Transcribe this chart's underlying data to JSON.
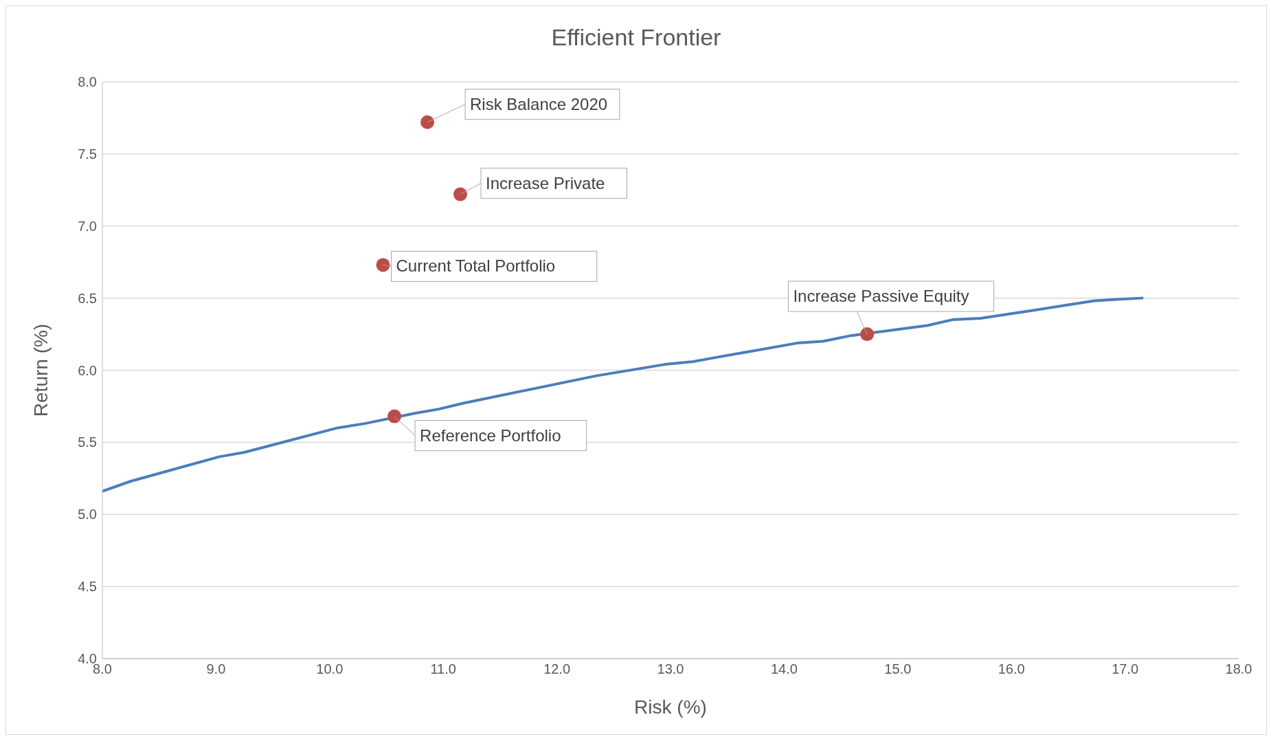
{
  "chart_data": {
    "type": "line",
    "title": "Efficient Frontier",
    "xlabel": "Risk (%)",
    "ylabel": "Return  (%)",
    "xlim": [
      8.0,
      18.0
    ],
    "xticks": [
      {
        "value": 8,
        "label": "8.0"
      },
      {
        "value": 9,
        "label": "9.0"
      },
      {
        "value": 10,
        "label": "10.0"
      },
      {
        "value": 11,
        "label": "11.0"
      },
      {
        "value": 12,
        "label": "12.0"
      },
      {
        "value": 13,
        "label": "13.0"
      },
      {
        "value": 14,
        "label": "14.0"
      },
      {
        "value": 15,
        "label": "15.0"
      },
      {
        "value": 16,
        "label": "16.0"
      },
      {
        "value": 17,
        "label": "17.0"
      },
      {
        "value": 18,
        "label": "18.0"
      }
    ],
    "ylim": [
      4.0,
      8.0
    ],
    "yticks": [
      {
        "value": 4,
        "label": "4.0"
      },
      {
        "value": 4.5,
        "label": "4.5"
      },
      {
        "value": 5,
        "label": "5.0"
      },
      {
        "value": 5.5,
        "label": "5.5"
      },
      {
        "value": 6,
        "label": "6.0"
      },
      {
        "value": 6.5,
        "label": "6.5"
      },
      {
        "value": 7,
        "label": "7.0"
      },
      {
        "value": 7.5,
        "label": "7.5"
      },
      {
        "value": 8,
        "label": "8.0"
      }
    ],
    "grid": "y",
    "series": [
      {
        "color": "#4a7ebb",
        "marker": "none",
        "line_style": "solid",
        "x": [
          8.0,
          8.25,
          9.03,
          9.25,
          10.07,
          10.31,
          10.74,
          10.96,
          11.17,
          12.34,
          12.95,
          13.2,
          13.41,
          13.63,
          14.13,
          14.34,
          14.59,
          15.26,
          15.48,
          15.73,
          16.23,
          16.72,
          16.9,
          17.15
        ],
        "values": [
          5.16,
          5.23,
          5.4,
          5.43,
          5.6,
          5.63,
          5.7,
          5.73,
          5.77,
          5.96,
          6.04,
          6.06,
          6.09,
          6.12,
          6.19,
          6.2,
          6.24,
          6.31,
          6.35,
          6.36,
          6.42,
          6.48,
          6.49,
          6.5
        ]
      },
      {
        "type": "scatter",
        "color": "#be4b48",
        "marker": "circle",
        "x": [
          10.86,
          11.15,
          10.47,
          14.73,
          10.57
        ],
        "values": [
          7.72,
          7.22,
          6.73,
          6.25,
          5.68
        ],
        "value_labels": [
          "Risk Balance 2020",
          "Increase Private",
          "Current Total Portfolio",
          "Increase Passive Equity",
          "Reference Portfolio"
        ]
      }
    ]
  }
}
